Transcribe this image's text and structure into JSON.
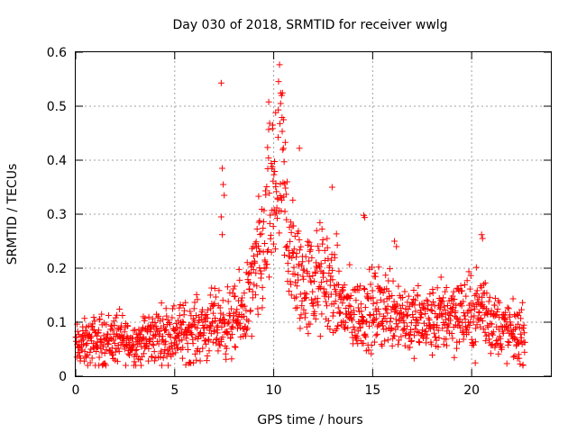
{
  "chart_data": {
    "type": "scatter",
    "title": "Day 030 of 2018, SRMTID for receiver wwlg",
    "xlabel": "GPS time / hours",
    "ylabel": "SRMTID / TECUs",
    "xlim": [
      0,
      24
    ],
    "ylim": [
      0,
      0.6
    ],
    "xticks": [
      0,
      5,
      10,
      15,
      20
    ],
    "xtick_labels": [
      "0",
      "5",
      "10",
      "15",
      "20"
    ],
    "yticks": [
      0,
      0.1,
      0.2,
      0.3,
      0.4,
      0.5,
      0.6
    ],
    "ytick_labels": [
      "0",
      "0.1",
      "0.2",
      "0.3",
      "0.4",
      "0.5",
      "0.6"
    ],
    "grid": true,
    "marker": "+",
    "color": "#ff0000",
    "x_range_of_data": [
      0,
      22.7
    ],
    "series": [
      {
        "name": "SRMTID",
        "trend": [
          [
            0,
            0.055
          ],
          [
            1,
            0.065
          ],
          [
            2,
            0.07
          ],
          [
            3,
            0.06
          ],
          [
            4,
            0.075
          ],
          [
            5,
            0.08
          ],
          [
            6,
            0.085
          ],
          [
            7,
            0.095
          ],
          [
            8,
            0.1
          ],
          [
            8.5,
            0.12
          ],
          [
            9,
            0.17
          ],
          [
            9.5,
            0.24
          ],
          [
            10,
            0.33
          ],
          [
            10.3,
            0.38
          ],
          [
            10.6,
            0.3
          ],
          [
            11,
            0.2
          ],
          [
            11.5,
            0.17
          ],
          [
            12,
            0.17
          ],
          [
            12.5,
            0.18
          ],
          [
            13,
            0.16
          ],
          [
            13.5,
            0.13
          ],
          [
            14,
            0.11
          ],
          [
            15,
            0.12
          ],
          [
            16,
            0.13
          ],
          [
            17,
            0.1
          ],
          [
            18,
            0.1
          ],
          [
            19,
            0.12
          ],
          [
            20,
            0.11
          ],
          [
            20.5,
            0.13
          ],
          [
            21,
            0.1
          ],
          [
            22,
            0.08
          ],
          [
            22.7,
            0.075
          ]
        ],
        "outliers": [
          [
            7.35,
            0.543
          ],
          [
            7.4,
            0.385
          ],
          [
            7.45,
            0.355
          ],
          [
            7.5,
            0.335
          ],
          [
            7.35,
            0.295
          ],
          [
            7.4,
            0.262
          ],
          [
            10.1,
            0.488
          ],
          [
            10.4,
            0.52
          ],
          [
            10.35,
            0.505
          ],
          [
            9.75,
            0.508
          ],
          [
            10.5,
            0.475
          ],
          [
            9.95,
            0.465
          ],
          [
            11.3,
            0.422
          ],
          [
            12.95,
            0.35
          ],
          [
            14.55,
            0.298
          ],
          [
            14.6,
            0.294
          ],
          [
            20.5,
            0.262
          ],
          [
            20.55,
            0.255
          ],
          [
            16.1,
            0.25
          ],
          [
            16.2,
            0.24
          ]
        ]
      }
    ]
  }
}
